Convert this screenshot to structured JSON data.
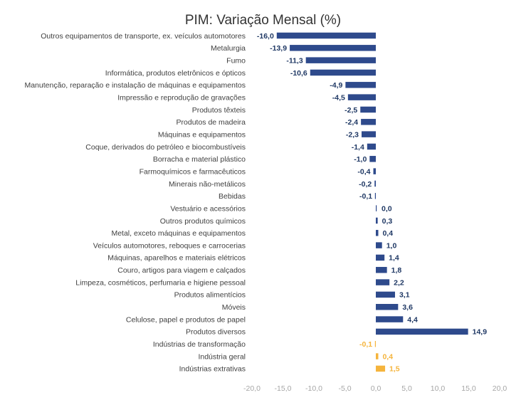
{
  "chart_data": {
    "type": "bar",
    "orientation": "horizontal",
    "title": "PIM: Variação Mensal (%)",
    "xlabel": "",
    "ylabel": "",
    "xlim": [
      -20,
      20
    ],
    "xticks": [
      "-20,0",
      "-15,0",
      "-10,0",
      "-5,0",
      "0,0",
      "5,0",
      "10,0",
      "15,0",
      "20,0"
    ],
    "grid": false,
    "legend": "none",
    "colors": {
      "sector": "#2e4a8c",
      "aggregate": "#f5b43c",
      "sector_label": "#1f3864",
      "aggregate_label": "#f5b43c"
    },
    "categories": [
      "Outros equipamentos de transporte, ex. veículos automotores",
      "Metalurgia",
      "Fumo",
      "Informática, produtos eletrônicos e ópticos",
      "Manutenção, reparação e instalação de máquinas e equipamentos",
      "Impressão e reprodução de gravações",
      "Produtos têxteis",
      "Produtos de madeira",
      "Máquinas e equipamentos",
      "Coque, derivados do petróleo e biocombustíveis",
      "Borracha e material plástico",
      "Farmoquímicos e farmacêuticos",
      "Minerais não-metálicos",
      "Bebidas",
      "Vestuário e acessórios",
      "Outros produtos químicos",
      "Metal, exceto máquinas e equipamentos",
      "Veículos automotores, reboques e carrocerias",
      "Máquinas, aparelhos e materiais elétricos",
      "Couro, artigos para viagem e calçados",
      "Limpeza, cosméticos, perfumaria e higiene pessoal",
      "Produtos alimentícios",
      "Móveis",
      "Celulose, papel e produtos de papel",
      "Produtos diversos",
      "Indústrias de transformação",
      "Indústria geral",
      "Indústrias extrativas"
    ],
    "values": [
      -16.0,
      -13.9,
      -11.3,
      -10.6,
      -4.9,
      -4.5,
      -2.5,
      -2.4,
      -2.3,
      -1.4,
      -1.0,
      -0.4,
      -0.2,
      -0.1,
      0.0,
      0.3,
      0.4,
      1.0,
      1.4,
      1.8,
      2.2,
      3.1,
      3.6,
      4.4,
      14.9,
      -0.1,
      0.4,
      1.5
    ],
    "value_labels": [
      "-16,0",
      "-13,9",
      "-11,3",
      "-10,6",
      "-4,9",
      "-4,5",
      "-2,5",
      "-2,4",
      "-2,3",
      "-1,4",
      "-1,0",
      "-0,4",
      "-0,2",
      "-0,1",
      "0,0",
      "0,3",
      "0,4",
      "1,0",
      "1,4",
      "1,8",
      "2,2",
      "3,1",
      "3,6",
      "4,4",
      "14,9",
      "-0,1",
      "0,4",
      "1,5"
    ],
    "group": [
      "sector",
      "sector",
      "sector",
      "sector",
      "sector",
      "sector",
      "sector",
      "sector",
      "sector",
      "sector",
      "sector",
      "sector",
      "sector",
      "sector",
      "sector",
      "sector",
      "sector",
      "sector",
      "sector",
      "sector",
      "sector",
      "sector",
      "sector",
      "sector",
      "sector",
      "aggregate",
      "aggregate",
      "aggregate"
    ]
  }
}
